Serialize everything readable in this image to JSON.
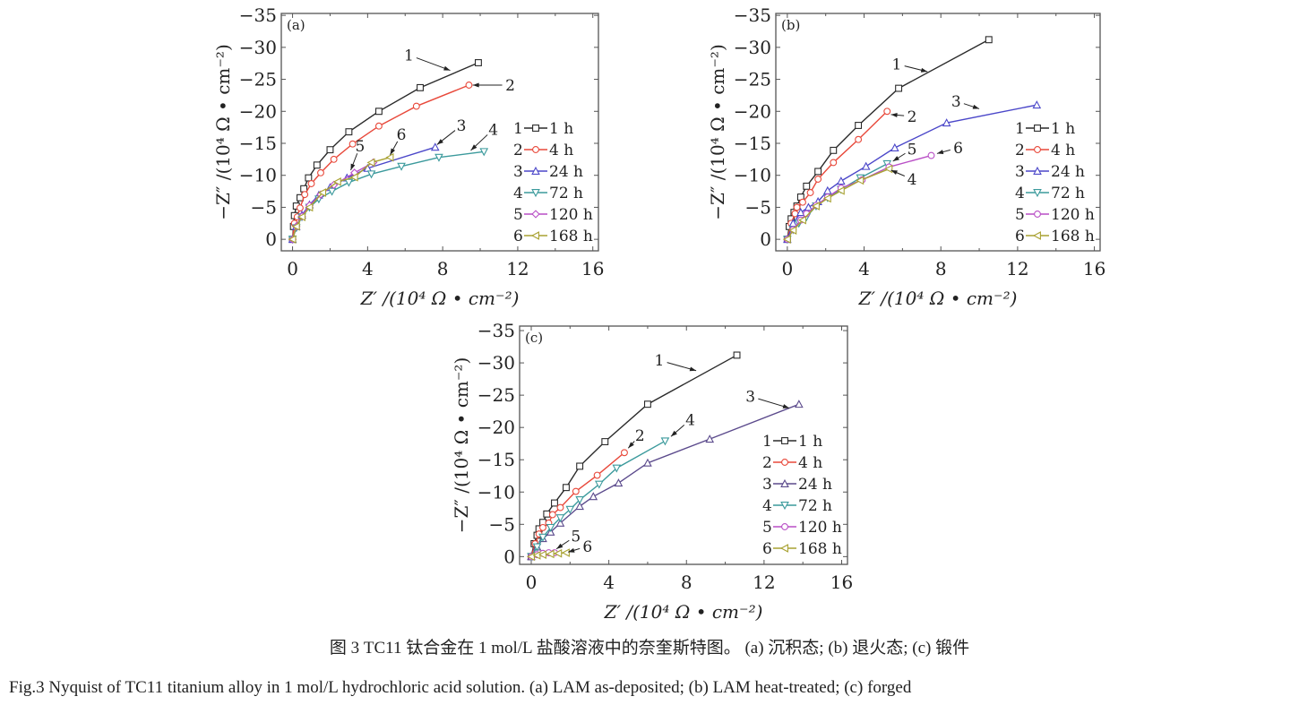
{
  "caption_cn": "图 3  TC11 钛合金在 1 mol/L 盐酸溶液中的奈奎斯特图。 (a) 沉积态; (b) 退火态; (c) 锻件",
  "caption_en": "Fig.3  Nyquist of TC11 titanium alloy in 1 mol/L hydrochloric acid solution. (a) LAM as-deposited; (b) LAM heat-treated; (c) forged",
  "colors": {
    "1": "#2a2a2a",
    "2": "#e8483a",
    "3": "#4b47c9",
    "4": "#3b9a9c",
    "5": "#b94fc6",
    "6": "#a9a232",
    "3c": "#5b4a8c"
  },
  "chart_data": [
    {
      "type": "line",
      "panel_label": "(a)",
      "xlabel": "Z′ /(10⁴ Ω • cm⁻²)",
      "ylabel": "−Z″ /(10⁴ Ω • cm⁻²)",
      "xlim": [
        -0.6,
        16.3
      ],
      "ylim": [
        1.8,
        -35.3
      ],
      "xticks": [
        0,
        4,
        8,
        12,
        16
      ],
      "xtick_labels": [
        "0",
        "4",
        "8",
        "12",
        "16"
      ],
      "yticks": [
        0,
        -5,
        -10,
        -15,
        -20,
        -25,
        -30,
        -35
      ],
      "ytick_labels": [
        "0",
        "−5",
        "−10",
        "−15",
        "−20",
        "−25",
        "−30",
        "−35"
      ],
      "grid": false,
      "legend_position": "right",
      "legend": [
        {
          "num": "1",
          "label": "1 h"
        },
        {
          "num": "2",
          "label": "4 h"
        },
        {
          "num": "3",
          "label": "24 h"
        },
        {
          "num": "4",
          "label": "72 h"
        },
        {
          "num": "5",
          "label": "120 h"
        },
        {
          "num": "6",
          "label": "168 h"
        }
      ],
      "series": [
        {
          "id": "1",
          "marker": "square",
          "x": [
            0,
            0.05,
            0.1,
            0.2,
            0.4,
            0.6,
            0.85,
            1.3,
            2,
            3,
            4.6,
            6.8,
            9.9
          ],
          "y": [
            0,
            -2,
            -3.7,
            -5.2,
            -6.5,
            -7.9,
            -9.6,
            -11.6,
            -14,
            -16.8,
            -20,
            -23.7,
            -27.6
          ]
        },
        {
          "id": "2",
          "marker": "circle",
          "x": [
            0,
            0.1,
            0.25,
            0.4,
            0.65,
            1,
            1.5,
            2.2,
            3.2,
            4.6,
            6.6,
            9.4
          ],
          "y": [
            0,
            -2.5,
            -3.5,
            -4.9,
            -7,
            -8.7,
            -10.4,
            -12.5,
            -14.9,
            -17.7,
            -20.8,
            -24.1
          ]
        },
        {
          "id": "3",
          "marker": "triangle-up",
          "x": [
            0,
            0.2,
            0.5,
            0.9,
            1.4,
            2,
            2.9,
            4,
            7.6
          ],
          "y": [
            0,
            -2,
            -3.8,
            -5.4,
            -6.9,
            -8.1,
            -9.6,
            -11.1,
            -14.4
          ]
        },
        {
          "id": "4",
          "marker": "triangle-down",
          "x": [
            0,
            0.2,
            0.5,
            0.9,
            1.4,
            2.1,
            3,
            4.2,
            5.8,
            7.8,
            10.2
          ],
          "y": [
            0,
            -1.8,
            -3.5,
            -5,
            -6.3,
            -7.5,
            -8.9,
            -10.2,
            -11.4,
            -12.8,
            -13.7
          ]
        },
        {
          "id": "5",
          "marker": "diamond",
          "x": [
            0,
            0.2,
            0.5,
            0.9,
            1.5,
            2.2,
            3.3,
            4.3
          ],
          "y": [
            0,
            -2,
            -3.6,
            -5.3,
            -7,
            -8.5,
            -10.4,
            -12
          ]
        },
        {
          "id": "6",
          "marker": "triangle-left",
          "x": [
            0,
            0.2,
            0.5,
            0.9,
            1.6,
            2.4,
            3.3,
            4.2,
            5.2
          ],
          "y": [
            0,
            -2,
            -3.5,
            -5,
            -7.3,
            -9,
            -9.7,
            -12,
            -12.8
          ]
        }
      ],
      "annotations": [
        {
          "text": "1",
          "at": [
            6.2,
            -28.8
          ],
          "to": [
            8.4,
            -26.4
          ]
        },
        {
          "text": "2",
          "at": [
            11.6,
            -24.1
          ],
          "to": [
            9.6,
            -24.1
          ]
        },
        {
          "text": "3",
          "at": [
            9.0,
            -17.8
          ],
          "to": [
            7.7,
            -14.8
          ]
        },
        {
          "text": "4",
          "at": [
            10.7,
            -17.2
          ],
          "to": [
            9.5,
            -13.9
          ]
        },
        {
          "text": "5",
          "at": [
            3.6,
            -14.6
          ],
          "to": [
            3.1,
            -10.8
          ]
        },
        {
          "text": "6",
          "at": [
            5.8,
            -16.4
          ],
          "to": [
            5.2,
            -13.2
          ]
        }
      ]
    },
    {
      "type": "line",
      "panel_label": "(b)",
      "xlabel": "Z′ /(10⁴ Ω • cm⁻²)",
      "ylabel": "−Z″ /(10⁴ Ω • cm⁻²)",
      "xlim": [
        -0.6,
        16.3
      ],
      "ylim": [
        1.8,
        -35.3
      ],
      "xticks": [
        0,
        4,
        8,
        12,
        16
      ],
      "xtick_labels": [
        "0",
        "4",
        "8",
        "12",
        "16"
      ],
      "yticks": [
        0,
        -5,
        -10,
        -15,
        -20,
        -25,
        -30,
        -35
      ],
      "ytick_labels": [
        "0",
        "−5",
        "−10",
        "−15",
        "−20",
        "−25",
        "−30",
        "−35"
      ],
      "grid": false,
      "legend_position": "right",
      "legend": [
        {
          "num": "1",
          "label": "1 h"
        },
        {
          "num": "2",
          "label": "4 h"
        },
        {
          "num": "3",
          "label": "24 h"
        },
        {
          "num": "4",
          "label": "72 h"
        },
        {
          "num": "5",
          "label": "120 h"
        },
        {
          "num": "6",
          "label": "168 h"
        }
      ],
      "series": [
        {
          "id": "1",
          "marker": "square",
          "x": [
            0,
            0.1,
            0.2,
            0.35,
            0.5,
            0.7,
            1,
            1.6,
            2.4,
            3.7,
            5.8,
            10.5
          ],
          "y": [
            0,
            -2,
            -3.2,
            -4.2,
            -5.2,
            -6.6,
            -8.3,
            -10.6,
            -13.9,
            -17.8,
            -23.6,
            -31.2
          ]
        },
        {
          "id": "2",
          "marker": "circle",
          "x": [
            0,
            0.2,
            0.4,
            0.5,
            0.8,
            1.2,
            1.6,
            2.4,
            3.7,
            5.2
          ],
          "y": [
            0,
            -2.5,
            -4,
            -5,
            -5.8,
            -7.3,
            -9.4,
            -12,
            -15.6,
            -20
          ]
        },
        {
          "id": "3",
          "marker": "triangle-up",
          "x": [
            0,
            0.3,
            0.7,
            1.1,
            1.6,
            2.1,
            2.8,
            4.1,
            5.6,
            8.3,
            13
          ],
          "y": [
            0,
            -2.5,
            -4.2,
            -5,
            -5.9,
            -7.6,
            -9.1,
            -11.4,
            -14.3,
            -18.2,
            -21
          ]
        },
        {
          "id": "4",
          "marker": "triangle-down",
          "x": [
            0,
            0.3,
            0.6,
            1,
            1.5,
            2.1,
            2.8,
            3.8,
            5.2
          ],
          "y": [
            0,
            -1.5,
            -2.5,
            -3.5,
            -5.2,
            -6.5,
            -7.8,
            -9.6,
            -11.8
          ]
        },
        {
          "id": "5",
          "marker": "circle",
          "x": [
            0,
            0.3,
            0.7,
            1,
            1.5,
            2.1,
            2.8,
            3.9,
            5.3,
            7.5
          ],
          "y": [
            0,
            -1.5,
            -3,
            -4,
            -5.3,
            -6.6,
            -8,
            -9.3,
            -11.3,
            -13.1
          ]
        },
        {
          "id": "6",
          "marker": "triangle-left",
          "x": [
            0,
            0.3,
            0.8,
            1.5,
            2.1,
            2.8,
            3.8,
            5.3
          ],
          "y": [
            0,
            -1.4,
            -3,
            -5.2,
            -6.4,
            -7.6,
            -9.2,
            -11
          ]
        }
      ],
      "annotations": [
        {
          "text": "1",
          "at": [
            5.7,
            -27.4
          ],
          "to": [
            7.3,
            -26.2
          ]
        },
        {
          "text": "2",
          "at": [
            6.5,
            -19.2
          ],
          "to": [
            5.4,
            -19.5
          ]
        },
        {
          "text": "3",
          "at": [
            8.8,
            -21.6
          ],
          "to": [
            10.0,
            -20.4
          ]
        },
        {
          "text": "4",
          "at": [
            6.5,
            -9.4
          ],
          "to": [
            5.4,
            -10.8
          ]
        },
        {
          "text": "5",
          "at": [
            6.5,
            -14.1
          ],
          "to": [
            5.5,
            -12.2
          ]
        },
        {
          "text": "6",
          "at": [
            8.9,
            -14.3
          ],
          "to": [
            7.8,
            -13.4
          ]
        }
      ]
    },
    {
      "type": "line",
      "panel_label": "(c)",
      "xlabel": "Z′ /(10⁴ Ω • cm⁻²)",
      "ylabel": "−Z″ /(10⁴ Ω • cm⁻²)",
      "xlim": [
        -0.6,
        16.3
      ],
      "ylim": [
        1.2,
        -35.7
      ],
      "xticks": [
        0,
        4,
        8,
        12,
        16
      ],
      "xtick_labels": [
        "0",
        "4",
        "8",
        "12",
        "16"
      ],
      "yticks": [
        0,
        -5,
        -10,
        -15,
        -20,
        -25,
        -30,
        -35
      ],
      "ytick_labels": [
        "0",
        "−5",
        "−10",
        "−15",
        "−20",
        "−25",
        "−30",
        "−35"
      ],
      "grid": false,
      "legend_position": "right",
      "legend": [
        {
          "num": "1",
          "label": "1 h"
        },
        {
          "num": "2",
          "label": "4 h"
        },
        {
          "num": "3",
          "label": "24 h"
        },
        {
          "num": "4",
          "label": "72 h"
        },
        {
          "num": "5",
          "label": "120 h"
        },
        {
          "num": "6",
          "label": "168 h"
        }
      ],
      "series": [
        {
          "id": "1",
          "marker": "square",
          "x": [
            0,
            0.15,
            0.3,
            0.4,
            0.6,
            0.8,
            1.2,
            1.8,
            2.5,
            3.8,
            6,
            10.6
          ],
          "y": [
            0,
            -2,
            -3.3,
            -4.3,
            -5.3,
            -6.6,
            -8.3,
            -10.7,
            -14,
            -17.8,
            -23.6,
            -31.2
          ]
        },
        {
          "id": "2",
          "marker": "circle",
          "x": [
            0,
            0.2,
            0.4,
            0.6,
            0.9,
            1.1,
            1.5,
            2.3,
            3.4,
            4.8
          ],
          "y": [
            0,
            -2,
            -3.5,
            -4.5,
            -5.2,
            -6.5,
            -7.6,
            -10.1,
            -12.6,
            -16.1
          ]
        },
        {
          "id": "3",
          "marker": "triangle-up",
          "x": [
            0,
            0.3,
            0.6,
            1,
            1.5,
            2.5,
            3.2,
            4.5,
            6,
            9.2,
            13.8
          ],
          "y": [
            0,
            -1.5,
            -2.8,
            -3.8,
            -5.2,
            -7.8,
            -9.3,
            -11.4,
            -14.5,
            -18.2,
            -23.6
          ]
        },
        {
          "id": "4",
          "marker": "triangle-down",
          "x": [
            0,
            0.3,
            0.6,
            1,
            1.5,
            2,
            2.5,
            3.5,
            4.4,
            6.9
          ],
          "y": [
            0,
            -1.5,
            -3,
            -4.5,
            -6,
            -7.3,
            -8.8,
            -11.2,
            -13.7,
            -17.9
          ]
        },
        {
          "id": "5",
          "marker": "circle",
          "x": [
            0,
            0.3,
            0.6,
            0.9,
            1.2
          ],
          "y": [
            0,
            -0.3,
            -0.5,
            -0.6,
            -0.6
          ]
        },
        {
          "id": "6",
          "marker": "triangle-left",
          "x": [
            0,
            0.3,
            0.6,
            1,
            1.4,
            1.8
          ],
          "y": [
            0,
            -0.2,
            -0.3,
            -0.4,
            -0.5,
            -0.6
          ]
        }
      ],
      "annotations": [
        {
          "text": "1",
          "at": [
            6.6,
            -30.4
          ],
          "to": [
            8.5,
            -28.8
          ]
        },
        {
          "text": "2",
          "at": [
            5.6,
            -18.8
          ],
          "to": [
            5.0,
            -16.8
          ]
        },
        {
          "text": "3",
          "at": [
            11.3,
            -24.8
          ],
          "to": [
            13.3,
            -23.0
          ]
        },
        {
          "text": "4",
          "at": [
            8.2,
            -21.2
          ],
          "to": [
            7.2,
            -18.6
          ]
        },
        {
          "text": "5",
          "at": [
            2.3,
            -3.2
          ],
          "to": [
            1.3,
            -1.2
          ]
        },
        {
          "text": "6",
          "at": [
            2.9,
            -1.6
          ],
          "to": [
            1.9,
            -0.7
          ]
        }
      ]
    }
  ]
}
